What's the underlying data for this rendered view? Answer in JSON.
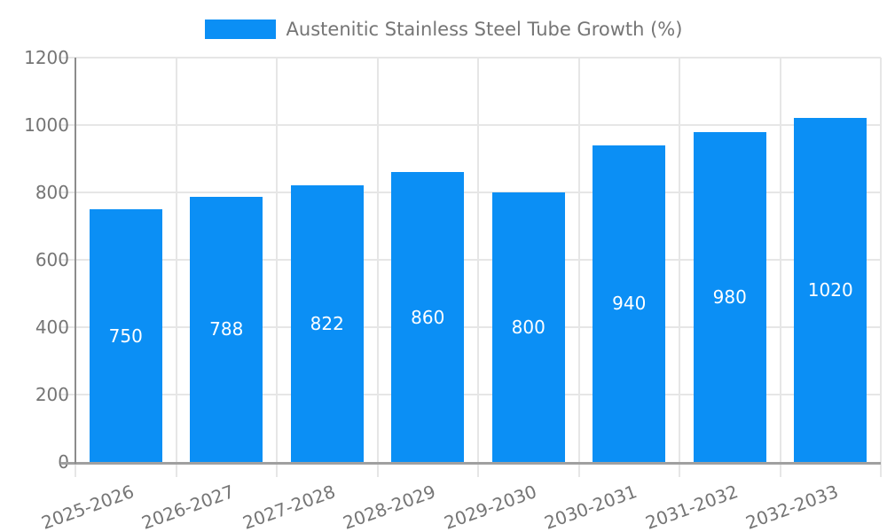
{
  "legend": {
    "label": "Austenitic Stainless Steel Tube Growth (%)"
  },
  "colors": {
    "bar": "#0b8ff5",
    "grid": "#e6e6e6",
    "axis_x": "#a0a0a0",
    "axis_y": "#8c8c8c",
    "tick_text": "#757575",
    "value_label_text": "#ffffff",
    "background": "#ffffff"
  },
  "chart_data": {
    "type": "bar",
    "title": "Austenitic Stainless Steel Tube Growth (%)",
    "categories": [
      "2025-2026",
      "2026-2027",
      "2027-2028",
      "2028-2029",
      "2029-2030",
      "2030-2031",
      "2031-2032",
      "2032-2033"
    ],
    "values": [
      750,
      788,
      822,
      860,
      800,
      940,
      980,
      1020
    ],
    "series_name": "Austenitic Stainless Steel Tube Growth (%)",
    "xlabel": "",
    "ylabel": "",
    "ylim": [
      0,
      1200
    ],
    "yticks": [
      0,
      200,
      400,
      600,
      800,
      1000,
      1200
    ],
    "grid": true,
    "legend_position": "top-center",
    "value_labels_position": "inside-middle",
    "x_tick_rotation_deg": -20
  }
}
